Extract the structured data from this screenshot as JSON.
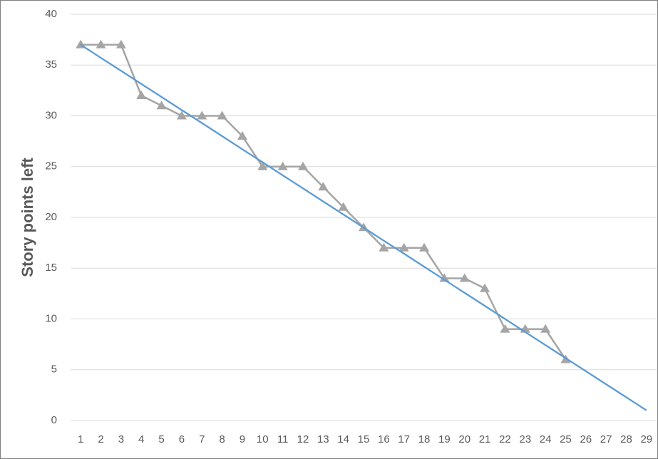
{
  "chart_data": {
    "type": "line",
    "y_label": "Story points left",
    "categories": [
      "1",
      "2",
      "3",
      "4",
      "5",
      "6",
      "7",
      "8",
      "9",
      "10",
      "11",
      "12",
      "13",
      "14",
      "15",
      "16",
      "17",
      "18",
      "19",
      "20",
      "21",
      "22",
      "23",
      "24",
      "25",
      "26",
      "27",
      "28",
      "29"
    ],
    "series": [
      {
        "color": "#a5a5a5",
        "marker": "triangle",
        "values": [
          37,
          37,
          37,
          32,
          31,
          30,
          30,
          30,
          28,
          25,
          25,
          25,
          23,
          21,
          19,
          17,
          17,
          17,
          14,
          14,
          13,
          9,
          9,
          9,
          6,
          null,
          null,
          null,
          null
        ]
      },
      {
        "color": "#5b9bd5",
        "marker": "none",
        "values": [
          37,
          35.71,
          34.43,
          33.14,
          31.86,
          30.57,
          29.29,
          28,
          26.71,
          25.43,
          24.14,
          22.86,
          21.57,
          20.29,
          19,
          17.71,
          16.43,
          15.14,
          13.86,
          12.57,
          11.29,
          10,
          8.71,
          7.43,
          6.14,
          4.86,
          3.57,
          2.29,
          1
        ]
      }
    ],
    "ylim": [
      0,
      40
    ],
    "yticks": [
      0,
      5,
      10,
      15,
      20,
      25,
      30,
      35,
      40
    ],
    "grid": true
  }
}
